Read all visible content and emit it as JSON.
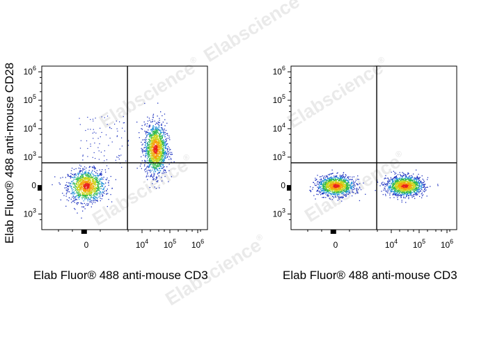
{
  "chart_data": [
    {
      "type": "scatter",
      "xlabel": "Elab Fluor® 488 anti-mouse CD3",
      "ylabel": "Elab Fluor® 488 anti-mouse CD28",
      "x_scale": "biexponential",
      "y_scale": "biexponential",
      "x_ticks": [
        "0",
        "10^4",
        "10^5",
        "10^6"
      ],
      "y_ticks": [
        "10^6",
        "10^5",
        "10^4",
        "10^3",
        "0",
        "10^3"
      ],
      "quadrant_gate": {
        "x": 3000,
        "y": 800
      },
      "populations": [
        {
          "x_center": 0,
          "y_center": 0,
          "events_share": 0.45
        },
        {
          "x_center": 30000,
          "y_center": 2000,
          "events_share": 0.55
        }
      ]
    },
    {
      "type": "scatter",
      "xlabel": "Elab Fluor® 488 anti-mouse CD3",
      "ylabel": "",
      "x_scale": "biexponential",
      "y_scale": "biexponential",
      "x_ticks": [
        "0",
        "10^4",
        "10^5",
        "10^6"
      ],
      "y_ticks": [
        "10^6",
        "10^5",
        "10^4",
        "10^3",
        "0",
        "10^3"
      ],
      "quadrant_gate": {
        "x": 3000,
        "y": 800
      },
      "populations": [
        {
          "x_center": 0,
          "y_center": 0,
          "events_share": 0.48
        },
        {
          "x_center": 30000,
          "y_center": 0,
          "events_share": 0.52
        }
      ]
    }
  ],
  "watermark": "Elabscience",
  "watermark_mark": "®",
  "colormap": [
    "#1a2fbf",
    "#1f8fd8",
    "#2fb84a",
    "#c8d61e",
    "#f5a20a",
    "#e8221a"
  ]
}
